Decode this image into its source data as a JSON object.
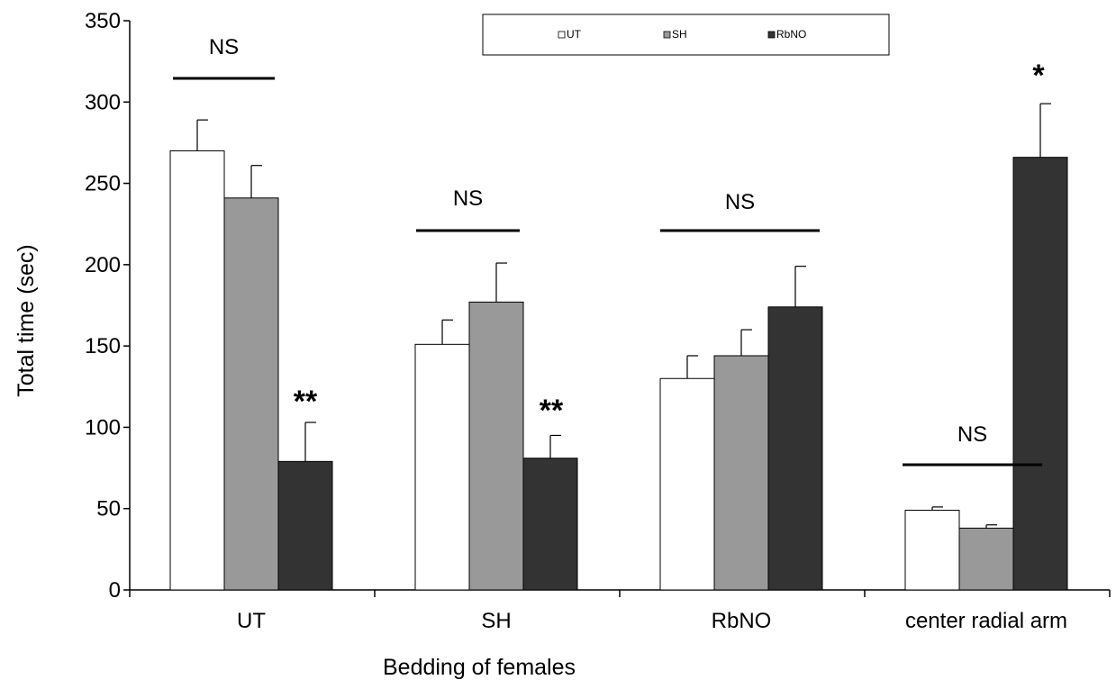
{
  "chart_data": {
    "type": "bar",
    "title": "",
    "xlabel": "Bedding of females",
    "ylabel": "Total time (sec)",
    "ylim": [
      0,
      350
    ],
    "yticks": [
      "0",
      "50",
      "100",
      "150",
      "200",
      "250",
      "300",
      "350"
    ],
    "categories": [
      "UT",
      "SH",
      "RbNO",
      "center radial arm"
    ],
    "series": [
      {
        "name": "UT",
        "color": "#ffffff",
        "values": [
          270,
          151,
          130,
          49
        ],
        "errors": [
          19,
          15,
          14,
          2
        ]
      },
      {
        "name": "SH",
        "color": "#999999",
        "values": [
          241,
          177,
          144,
          38
        ],
        "errors": [
          20,
          24,
          16,
          2
        ]
      },
      {
        "name": "RbNO",
        "color": "#333333",
        "values": [
          79,
          81,
          174,
          266
        ],
        "errors": [
          24,
          14,
          25,
          33
        ]
      }
    ],
    "legend": {
      "position": "top-center",
      "entries": [
        "UT",
        "SH",
        "RbNO"
      ]
    },
    "grid": false,
    "annotations": [
      {
        "text": "NS",
        "category": 0,
        "kind": "bracket"
      },
      {
        "text": "**",
        "category": 0,
        "series": 2,
        "kind": "star"
      },
      {
        "text": "NS",
        "category": 1,
        "kind": "bracket"
      },
      {
        "text": "**",
        "category": 1,
        "series": 2,
        "kind": "star"
      },
      {
        "text": "NS",
        "category": 2,
        "kind": "bracket"
      },
      {
        "text": "NS",
        "category": 3,
        "kind": "bracket"
      },
      {
        "text": "*",
        "category": 3,
        "series": 2,
        "kind": "star"
      }
    ]
  }
}
